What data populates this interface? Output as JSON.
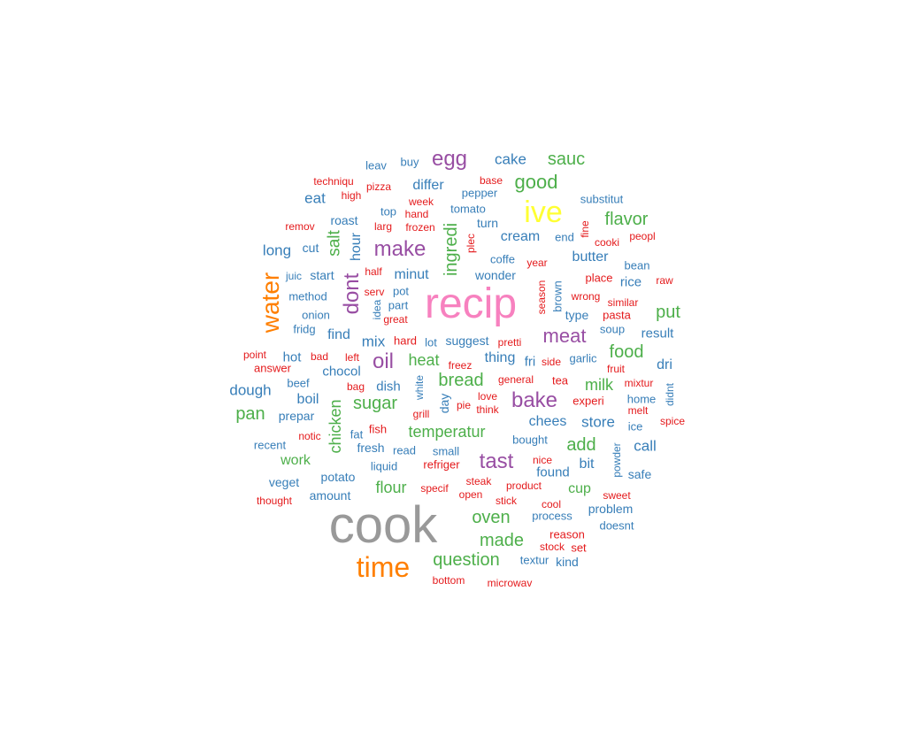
{
  "palette": {
    "grey": "#999999",
    "pink": "#F781BF",
    "yellow": "#FFFF33",
    "orange": "#FF7F00",
    "purple": "#984EA3",
    "green": "#4DAF4A",
    "blue": "#377EB8",
    "red": "#E41A1C"
  },
  "words": [
    {
      "text": "cook",
      "color": "grey"
    },
    {
      "text": "recip",
      "color": "pink"
    },
    {
      "text": "ive",
      "color": "yellow"
    },
    {
      "text": "time",
      "color": "orange"
    },
    {
      "text": "water",
      "color": "orange"
    },
    {
      "text": "make",
      "color": "purple"
    },
    {
      "text": "egg",
      "color": "purple"
    },
    {
      "text": "bake",
      "color": "purple"
    },
    {
      "text": "tast",
      "color": "purple"
    },
    {
      "text": "meat",
      "color": "purple"
    },
    {
      "text": "dont",
      "color": "purple"
    },
    {
      "text": "oil",
      "color": "purple"
    },
    {
      "text": "good",
      "color": "green"
    },
    {
      "text": "sauc",
      "color": "green"
    },
    {
      "text": "flavor",
      "color": "green"
    },
    {
      "text": "ingredi",
      "color": "green"
    },
    {
      "text": "salt",
      "color": "green"
    },
    {
      "text": "sugar",
      "color": "green"
    },
    {
      "text": "bread",
      "color": "green"
    },
    {
      "text": "food",
      "color": "green"
    },
    {
      "text": "put",
      "color": "green"
    },
    {
      "text": "pan",
      "color": "green"
    },
    {
      "text": "heat",
      "color": "green"
    },
    {
      "text": "milk",
      "color": "green"
    },
    {
      "text": "temperatur",
      "color": "green"
    },
    {
      "text": "chicken",
      "color": "green"
    },
    {
      "text": "add",
      "color": "green"
    },
    {
      "text": "oven",
      "color": "green"
    },
    {
      "text": "made",
      "color": "green"
    },
    {
      "text": "flour",
      "color": "green"
    },
    {
      "text": "question",
      "color": "green"
    },
    {
      "text": "work",
      "color": "green"
    },
    {
      "text": "cup",
      "color": "green"
    },
    {
      "text": "cake",
      "color": "blue"
    },
    {
      "text": "differ",
      "color": "blue"
    },
    {
      "text": "buy",
      "color": "blue"
    },
    {
      "text": "leav",
      "color": "blue"
    },
    {
      "text": "eat",
      "color": "blue"
    },
    {
      "text": "pepper",
      "color": "blue"
    },
    {
      "text": "substitut",
      "color": "blue"
    },
    {
      "text": "top",
      "color": "blue"
    },
    {
      "text": "tomato",
      "color": "blue"
    },
    {
      "text": "roast",
      "color": "blue"
    },
    {
      "text": "turn",
      "color": "blue"
    },
    {
      "text": "cream",
      "color": "blue"
    },
    {
      "text": "end",
      "color": "blue"
    },
    {
      "text": "hour",
      "color": "blue"
    },
    {
      "text": "long",
      "color": "blue"
    },
    {
      "text": "cut",
      "color": "blue"
    },
    {
      "text": "butter",
      "color": "blue"
    },
    {
      "text": "coffe",
      "color": "blue"
    },
    {
      "text": "bean",
      "color": "blue"
    },
    {
      "text": "start",
      "color": "blue"
    },
    {
      "text": "juic",
      "color": "blue"
    },
    {
      "text": "minut",
      "color": "blue"
    },
    {
      "text": "wonder",
      "color": "blue"
    },
    {
      "text": "rice",
      "color": "blue"
    },
    {
      "text": "pot",
      "color": "blue"
    },
    {
      "text": "method",
      "color": "blue"
    },
    {
      "text": "part",
      "color": "blue"
    },
    {
      "text": "idea",
      "color": "blue"
    },
    {
      "text": "brown",
      "color": "blue"
    },
    {
      "text": "onion",
      "color": "blue"
    },
    {
      "text": "type",
      "color": "blue"
    },
    {
      "text": "fridg",
      "color": "blue"
    },
    {
      "text": "find",
      "color": "blue"
    },
    {
      "text": "soup",
      "color": "blue"
    },
    {
      "text": "result",
      "color": "blue"
    },
    {
      "text": "mix",
      "color": "blue"
    },
    {
      "text": "lot",
      "color": "blue"
    },
    {
      "text": "suggest",
      "color": "blue"
    },
    {
      "text": "hot",
      "color": "blue"
    },
    {
      "text": "thing",
      "color": "blue"
    },
    {
      "text": "fri",
      "color": "blue"
    },
    {
      "text": "garlic",
      "color": "blue"
    },
    {
      "text": "dri",
      "color": "blue"
    },
    {
      "text": "chocol",
      "color": "blue"
    },
    {
      "text": "beef",
      "color": "blue"
    },
    {
      "text": "dough",
      "color": "blue"
    },
    {
      "text": "dish",
      "color": "blue"
    },
    {
      "text": "white",
      "color": "blue"
    },
    {
      "text": "boil",
      "color": "blue"
    },
    {
      "text": "day",
      "color": "blue"
    },
    {
      "text": "didnt",
      "color": "blue"
    },
    {
      "text": "home",
      "color": "blue"
    },
    {
      "text": "prepar",
      "color": "blue"
    },
    {
      "text": "chees",
      "color": "blue"
    },
    {
      "text": "store",
      "color": "blue"
    },
    {
      "text": "ice",
      "color": "blue"
    },
    {
      "text": "fat",
      "color": "blue"
    },
    {
      "text": "recent",
      "color": "blue"
    },
    {
      "text": "call",
      "color": "blue"
    },
    {
      "text": "bought",
      "color": "blue"
    },
    {
      "text": "fresh",
      "color": "blue"
    },
    {
      "text": "read",
      "color": "blue"
    },
    {
      "text": "small",
      "color": "blue"
    },
    {
      "text": "powder",
      "color": "blue"
    },
    {
      "text": "liquid",
      "color": "blue"
    },
    {
      "text": "bit",
      "color": "blue"
    },
    {
      "text": "found",
      "color": "blue"
    },
    {
      "text": "safe",
      "color": "blue"
    },
    {
      "text": "potato",
      "color": "blue"
    },
    {
      "text": "veget",
      "color": "blue"
    },
    {
      "text": "amount",
      "color": "blue"
    },
    {
      "text": "process",
      "color": "blue"
    },
    {
      "text": "problem",
      "color": "blue"
    },
    {
      "text": "doesnt",
      "color": "blue"
    },
    {
      "text": "textur",
      "color": "blue"
    },
    {
      "text": "kind",
      "color": "blue"
    },
    {
      "text": "techniqu",
      "color": "red"
    },
    {
      "text": "pizza",
      "color": "red"
    },
    {
      "text": "base",
      "color": "red"
    },
    {
      "text": "high",
      "color": "red"
    },
    {
      "text": "week",
      "color": "red"
    },
    {
      "text": "hand",
      "color": "red"
    },
    {
      "text": "remov",
      "color": "red"
    },
    {
      "text": "larg",
      "color": "red"
    },
    {
      "text": "frozen",
      "color": "red"
    },
    {
      "text": "fine",
      "color": "red"
    },
    {
      "text": "peopl",
      "color": "red"
    },
    {
      "text": "cooki",
      "color": "red"
    },
    {
      "text": "plec",
      "color": "red"
    },
    {
      "text": "half",
      "color": "red"
    },
    {
      "text": "year",
      "color": "red"
    },
    {
      "text": "place",
      "color": "red"
    },
    {
      "text": "raw",
      "color": "red"
    },
    {
      "text": "serv",
      "color": "red"
    },
    {
      "text": "season",
      "color": "red"
    },
    {
      "text": "wrong",
      "color": "red"
    },
    {
      "text": "similar",
      "color": "red"
    },
    {
      "text": "great",
      "color": "red"
    },
    {
      "text": "pasta",
      "color": "red"
    },
    {
      "text": "hard",
      "color": "red"
    },
    {
      "text": "pretti",
      "color": "red"
    },
    {
      "text": "point",
      "color": "red"
    },
    {
      "text": "bad",
      "color": "red"
    },
    {
      "text": "left",
      "color": "red"
    },
    {
      "text": "answer",
      "color": "red"
    },
    {
      "text": "freez",
      "color": "red"
    },
    {
      "text": "side",
      "color": "red"
    },
    {
      "text": "fruit",
      "color": "red"
    },
    {
      "text": "general",
      "color": "red"
    },
    {
      "text": "tea",
      "color": "red"
    },
    {
      "text": "mixtur",
      "color": "red"
    },
    {
      "text": "bag",
      "color": "red"
    },
    {
      "text": "love",
      "color": "red"
    },
    {
      "text": "pie",
      "color": "red"
    },
    {
      "text": "think",
      "color": "red"
    },
    {
      "text": "experi",
      "color": "red"
    },
    {
      "text": "melt",
      "color": "red"
    },
    {
      "text": "grill",
      "color": "red"
    },
    {
      "text": "spice",
      "color": "red"
    },
    {
      "text": "notic",
      "color": "red"
    },
    {
      "text": "fish",
      "color": "red"
    },
    {
      "text": "refriger",
      "color": "red"
    },
    {
      "text": "nice",
      "color": "red"
    },
    {
      "text": "steak",
      "color": "red"
    },
    {
      "text": "specif",
      "color": "red"
    },
    {
      "text": "product",
      "color": "red"
    },
    {
      "text": "open",
      "color": "red"
    },
    {
      "text": "sweet",
      "color": "red"
    },
    {
      "text": "thought",
      "color": "red"
    },
    {
      "text": "stick",
      "color": "red"
    },
    {
      "text": "cool",
      "color": "red"
    },
    {
      "text": "reason",
      "color": "red"
    },
    {
      "text": "stock",
      "color": "red"
    },
    {
      "text": "set",
      "color": "red"
    },
    {
      "text": "bottom",
      "color": "red"
    },
    {
      "text": "microwav",
      "color": "red"
    }
  ]
}
